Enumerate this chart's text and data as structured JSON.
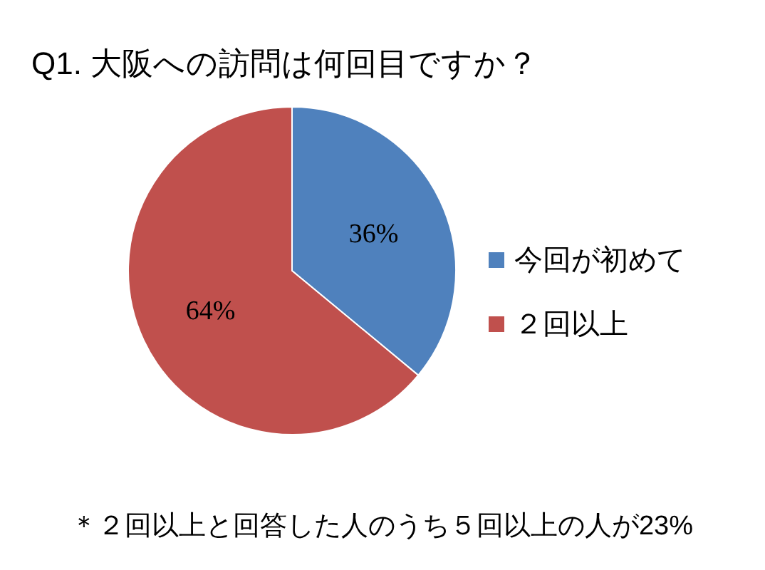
{
  "chart_data": {
    "type": "pie",
    "title": "Q1.  大阪への訪問は何回目ですか？",
    "categories": [
      "今回が初めて",
      "２回以上"
    ],
    "values": [
      36,
      64
    ],
    "colors": [
      "#4f81bd",
      "#c0504d"
    ],
    "value_labels": [
      "36%",
      "64%"
    ],
    "legend": "right",
    "annotations": [
      "＊２回以上と回答した人のうち５回以上の人が23%"
    ]
  }
}
